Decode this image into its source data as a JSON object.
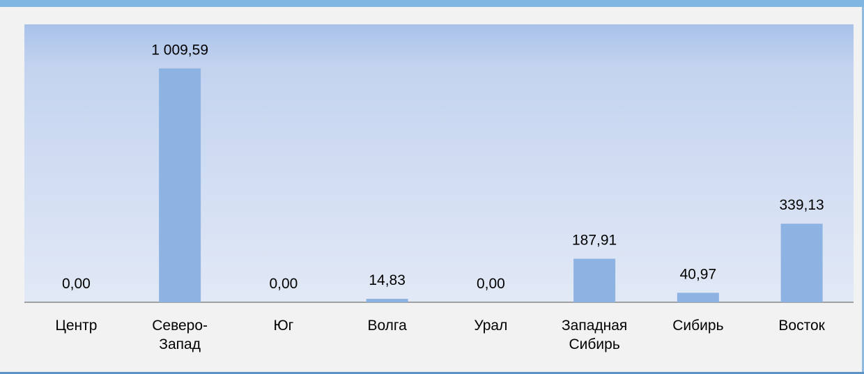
{
  "chart_data": {
    "type": "bar",
    "categories": [
      "Центр",
      "Северо-Запад",
      "Юг",
      "Волга",
      "Урал",
      "Западная Сибирь",
      "Сибирь",
      "Восток"
    ],
    "values": [
      0,
      1009.59,
      0,
      14.83,
      0,
      187.91,
      40.97,
      339.13
    ],
    "value_labels": [
      "0,00",
      "1 009,59",
      "0,00",
      "14,83",
      "0,00",
      "187,91",
      "40,97",
      "339,13"
    ],
    "color": "#8db3e2",
    "ylim": [
      0,
      1200
    ]
  }
}
